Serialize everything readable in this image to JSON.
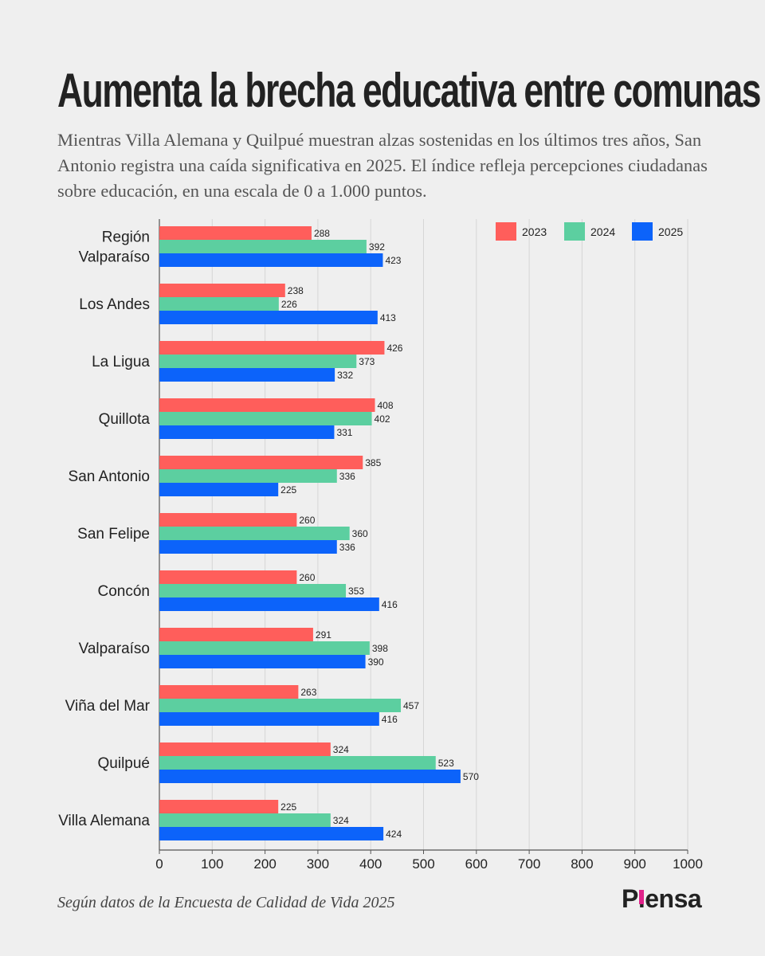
{
  "title": "Aumenta la brecha educativa entre comunas",
  "subtitle": "Mientras Villa Alemana y Quilpué muestran alzas sostenidas en los últimos tres años, San Antonio registra una caída significativa en 2025. El índice refleja percepciones ciudadanas sobre educación, en una escala de 0 a 1.000 puntos.",
  "source": "Según datos de la Encuesta de Calidad de Vida 2025",
  "logo": {
    "text_before": "P",
    "text_after": "ensa",
    "accent": "#e0228a"
  },
  "colors": {
    "2023": "#ff5e5b",
    "2024": "#5ccfa0",
    "2025": "#0c63fa"
  },
  "chart_data": {
    "type": "bar",
    "orientation": "horizontal",
    "title": "Aumenta la brecha educativa entre comunas",
    "categories": [
      [
        "Región",
        "Valparaíso"
      ],
      [
        "Los Andes"
      ],
      [
        "La Ligua"
      ],
      [
        "Quillota"
      ],
      [
        "San Antonio"
      ],
      [
        "San Felipe"
      ],
      [
        "Concón"
      ],
      [
        "Valparaíso"
      ],
      [
        "Viña del Mar"
      ],
      [
        "Quilpué"
      ],
      [
        "Villa Alemana"
      ]
    ],
    "series": [
      {
        "name": "2023",
        "values": [
          288,
          238,
          426,
          408,
          385,
          260,
          260,
          291,
          263,
          324,
          225
        ]
      },
      {
        "name": "2024",
        "values": [
          392,
          226,
          373,
          402,
          336,
          360,
          353,
          398,
          457,
          523,
          324
        ]
      },
      {
        "name": "2025",
        "values": [
          423,
          413,
          332,
          331,
          225,
          336,
          416,
          390,
          416,
          570,
          424
        ]
      }
    ],
    "xlim": [
      0,
      1000
    ],
    "xticks": [
      0,
      100,
      200,
      300,
      400,
      500,
      600,
      700,
      800,
      900,
      1000
    ],
    "grid": true,
    "legend": "top-right",
    "xlabel": "",
    "ylabel": ""
  }
}
